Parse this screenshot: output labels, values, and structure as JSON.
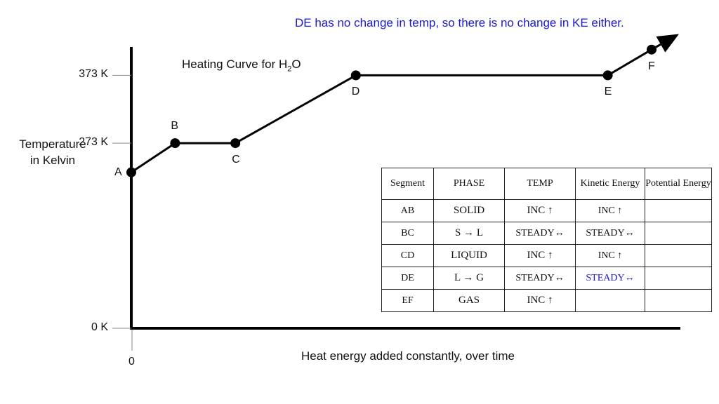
{
  "note": "DE has no change in temp, so there is no change in KE either.",
  "chart_data": {
    "type": "line",
    "title": "Heating Curve for H",
    "title_subscript": "2",
    "title_suffix": "O",
    "xlabel": "Heat energy added constantly, over time",
    "ylabel_line1": "Temperature",
    "ylabel_line2": "in Kelvin",
    "x_tick_labels": [
      "0"
    ],
    "y_ticks": [
      {
        "value": 0,
        "label": "0 K"
      },
      {
        "value": 273,
        "label": "273 K"
      },
      {
        "value": 373,
        "label": "373 K"
      }
    ],
    "points": [
      {
        "label": "A",
        "x": 0,
        "y": 230
      },
      {
        "label": "B",
        "x": 8,
        "y": 273
      },
      {
        "label": "C",
        "x": 19,
        "y": 273
      },
      {
        "label": "D",
        "x": 41,
        "y": 373
      },
      {
        "label": "E",
        "x": 87,
        "y": 373
      },
      {
        "label": "F",
        "x": 95,
        "y": 411
      }
    ],
    "arrow_end": {
      "x": 100,
      "y": 434
    },
    "xlim": [
      0,
      100
    ],
    "ylim": [
      0,
      450
    ],
    "line_color": "#000000",
    "grid": false
  },
  "table": {
    "headers": [
      "Segment",
      "PHASE",
      "TEMP",
      "Kinetic Energy",
      "Potential Energy"
    ],
    "rows": [
      {
        "segment": "AB",
        "phase": "SOLID",
        "temp": "INC ↑",
        "ke": "INC ↑",
        "pe": ""
      },
      {
        "segment": "BC",
        "phase": "S → L",
        "temp": "STEADY↔",
        "ke": "STEADY↔",
        "pe": ""
      },
      {
        "segment": "CD",
        "phase": "LIQUID",
        "temp": "INC ↑",
        "ke": "INC ↑",
        "pe": ""
      },
      {
        "segment": "DE",
        "phase": "L → G",
        "temp": "STEADY↔",
        "ke": "STEADY↔",
        "pe": ""
      },
      {
        "segment": "EF",
        "phase": "GAS",
        "temp": "INC ↑",
        "ke": "",
        "pe": ""
      }
    ]
  },
  "colors": {
    "note": "#1a1acc",
    "highlight": "#1a1acc",
    "line": "#000000"
  }
}
